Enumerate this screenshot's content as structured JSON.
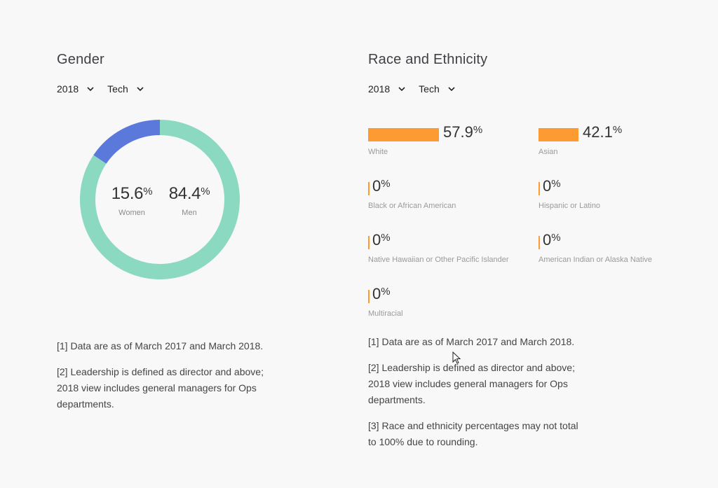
{
  "gender": {
    "title": "Gender",
    "filters": [
      {
        "label": "2018",
        "icon": "chevron-down-icon"
      },
      {
        "label": "Tech",
        "icon": "chevron-down-icon"
      }
    ],
    "stats": [
      {
        "value": "15.6",
        "unit": "%",
        "label": "Women"
      },
      {
        "value": "84.4",
        "unit": "%",
        "label": "Men"
      }
    ],
    "notes": [
      "[1] Data are as of March 2017 and March 2018.",
      "[2] Leadership is defined as director and above; 2018 view includes general managers for Ops departments."
    ]
  },
  "race": {
    "title": "Race and Ethnicity",
    "filters": [
      {
        "label": "2018",
        "icon": "chevron-down-icon"
      },
      {
        "label": "Tech",
        "icon": "chevron-down-icon"
      }
    ],
    "items": [
      {
        "value": "57.9",
        "unit": "%",
        "label": "White"
      },
      {
        "value": "42.1",
        "unit": "%",
        "label": "Asian"
      },
      {
        "value": "0",
        "unit": "%",
        "label": "Black or African American"
      },
      {
        "value": "0",
        "unit": "%",
        "label": "Hispanic or Latino"
      },
      {
        "value": "0",
        "unit": "%",
        "label": "Native Hawaiian or Other Pacific Islander"
      },
      {
        "value": "0",
        "unit": "%",
        "label": "American Indian or Alaska Native"
      },
      {
        "value": "0",
        "unit": "%",
        "label": "Multiracial"
      }
    ],
    "notes": [
      "[1] Data are as of March 2017 and March 2018.",
      "[2] Leadership is defined as director and above; 2018 view includes general managers for Ops departments.",
      "[3] Race and ethnicity percentages may not total to 100% due to rounding."
    ]
  },
  "colors": {
    "women": "#5b79db",
    "men": "#8bd9c0",
    "race_bar": "#fd9a32",
    "background": "#f8f8f8"
  },
  "chart_data": [
    {
      "type": "pie",
      "title": "Gender",
      "categories": [
        "Women",
        "Men"
      ],
      "values": [
        15.6,
        84.4
      ],
      "unit": "%",
      "style": "donut",
      "filters": {
        "year": "2018",
        "group": "Tech"
      }
    },
    {
      "type": "bar",
      "title": "Race and Ethnicity",
      "categories": [
        "White",
        "Asian",
        "Black or African American",
        "Hispanic or Latino",
        "Native Hawaiian or Other Pacific Islander",
        "American Indian or Alaska Native",
        "Multiracial"
      ],
      "values": [
        57.9,
        42.1,
        0,
        0,
        0,
        0,
        0
      ],
      "unit": "%",
      "orientation": "horizontal",
      "filters": {
        "year": "2018",
        "group": "Tech"
      }
    }
  ]
}
